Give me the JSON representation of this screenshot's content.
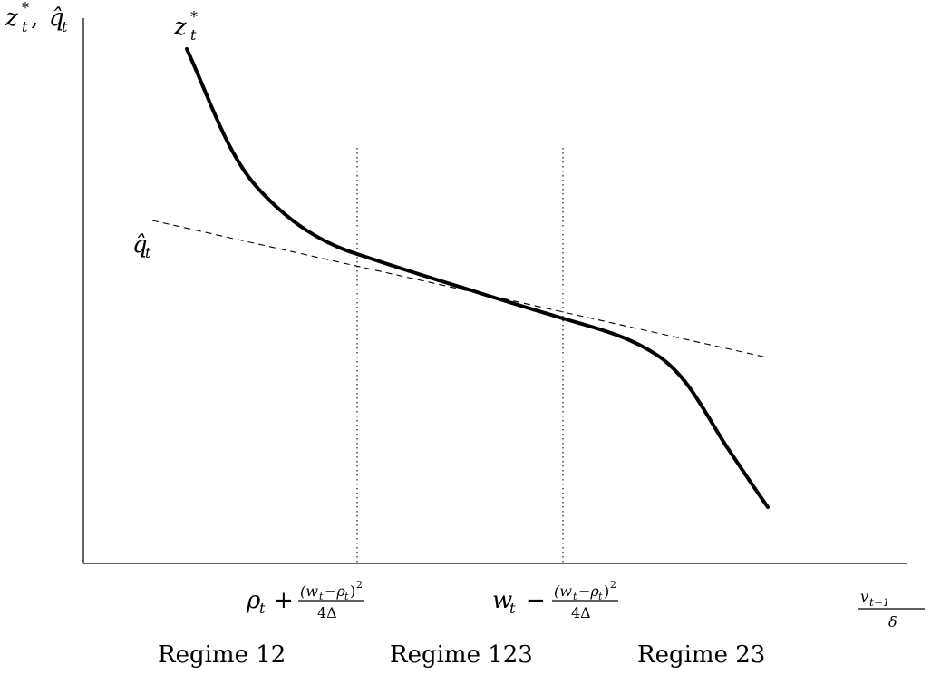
{
  "diagram": {
    "y_axis_label": {
      "first": "z",
      "first_sup": "*",
      "first_sub": "t",
      "sep": ", ",
      "second": "q̂",
      "second_sub": "t"
    },
    "x_axis_label": {
      "numerator": "v",
      "numerator_sub": "t−1",
      "denominator": "δ"
    },
    "curve_label": {
      "base": "z",
      "sup": "*",
      "sub": "t"
    },
    "line_label": {
      "base": "q̂",
      "sub": "t"
    },
    "threshold_1": {
      "lead": "ρ",
      "lead_sub": "t",
      "op": "+",
      "num": "(w",
      "num_sub1": "t",
      "num_mid": "−ρ",
      "num_sub2": "t",
      "num_end": ")",
      "num_pow": "2",
      "den": "4Δ"
    },
    "threshold_2": {
      "lead": "w",
      "lead_sub": "t",
      "op": "−",
      "num": "(w",
      "num_sub1": "t",
      "num_mid": "−ρ",
      "num_sub2": "t",
      "num_end": ")",
      "num_pow": "2",
      "den": "4Δ"
    },
    "regimes": [
      "Regime 12",
      "Regime 123",
      "Regime 23"
    ]
  }
}
